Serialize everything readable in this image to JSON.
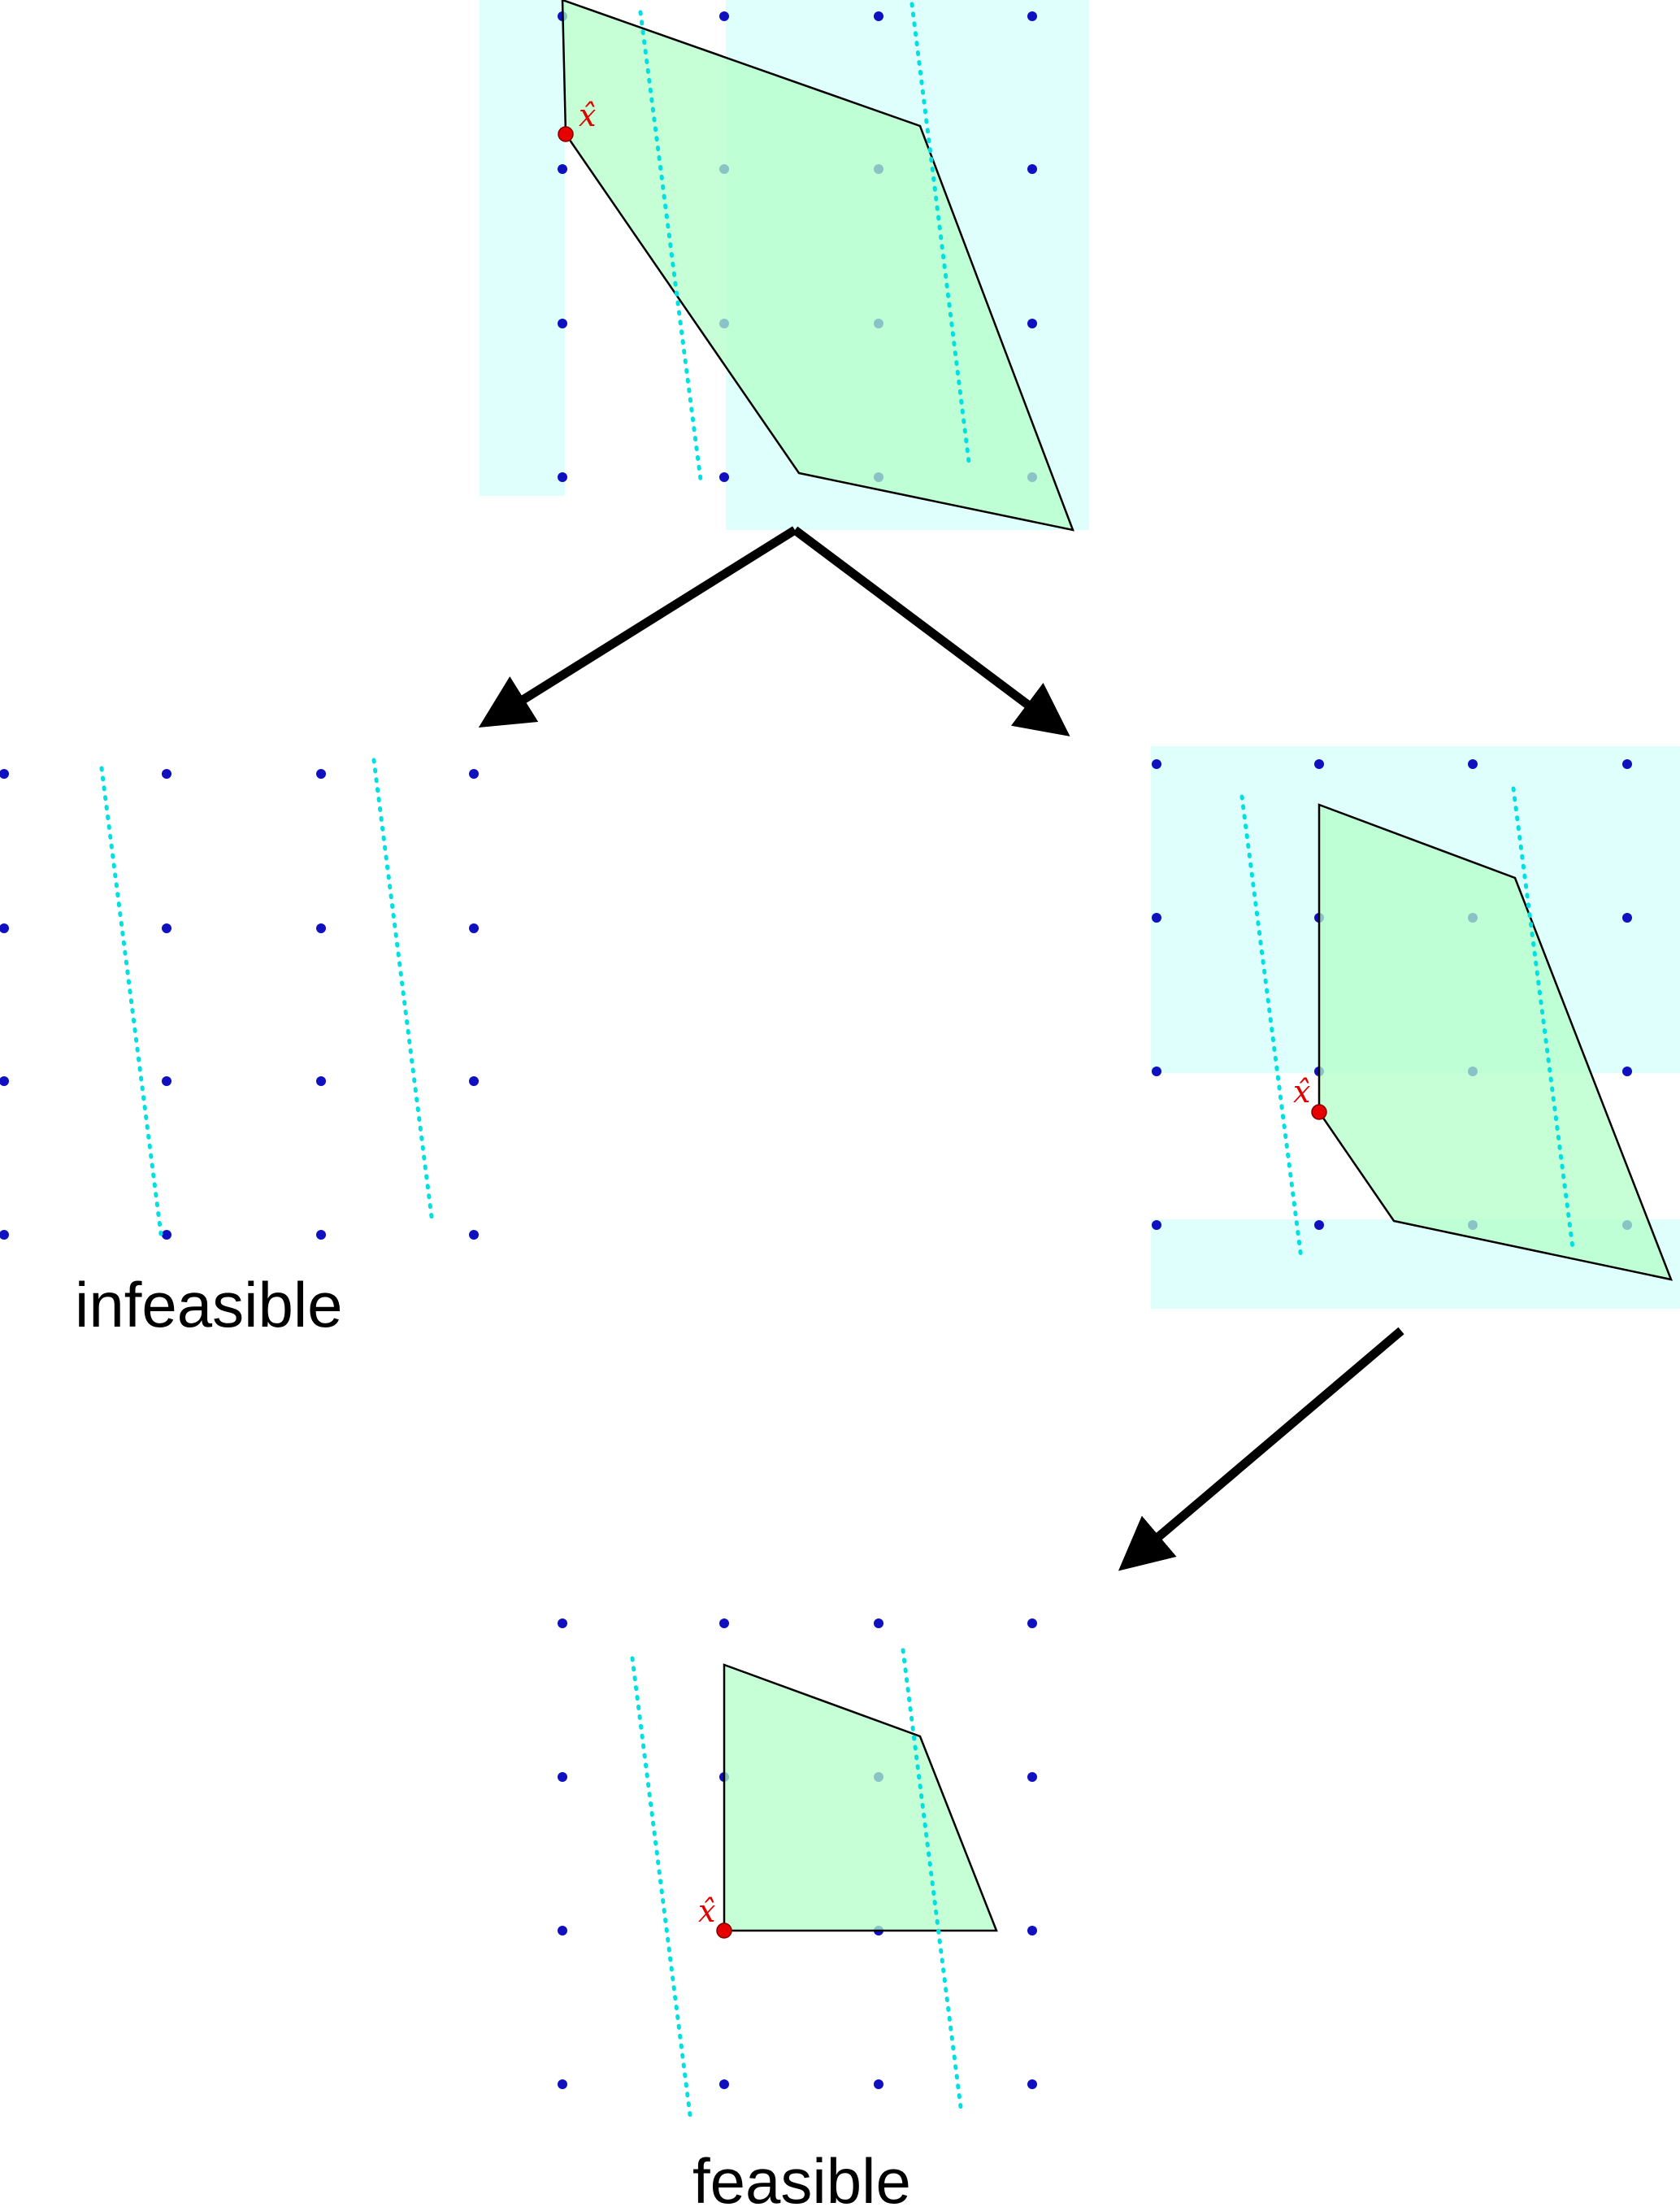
{
  "labels": {
    "infeasible": "infeasible",
    "feasible": "feasible",
    "point": "x̂"
  },
  "colors": {
    "lattice_point": "#1010c0",
    "polygon_fill": "#b3ffc8",
    "polygon_stroke": "#000000",
    "branch_region": "#dcfffd",
    "cut_line": "#00e0e0",
    "vertex_point": "#e60000",
    "arrow": "#000000"
  }
}
